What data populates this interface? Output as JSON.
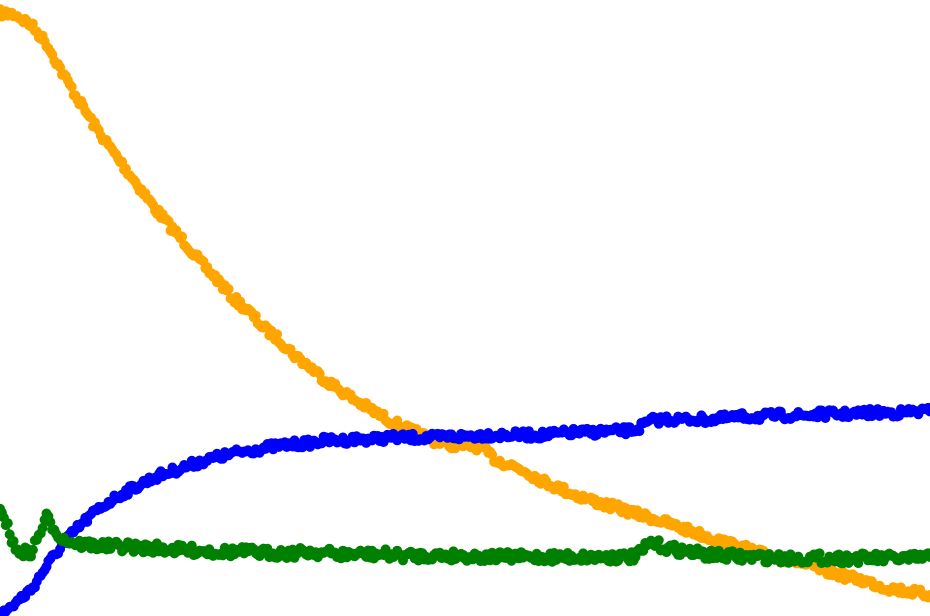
{
  "chart_data": {
    "type": "scatter",
    "axes_visible": false,
    "grid": false,
    "legend": "none",
    "x": [
      0,
      1,
      2,
      3,
      4,
      5,
      6,
      7,
      8,
      9,
      10,
      11,
      12,
      13,
      14,
      15,
      16,
      17,
      18,
      19,
      20,
      21,
      22,
      23,
      24,
      25,
      26,
      27,
      28,
      29,
      30,
      31,
      32,
      33,
      34,
      35,
      36,
      37,
      38,
      39,
      40,
      41,
      42,
      43,
      44,
      45,
      46,
      47,
      48,
      49,
      50,
      51,
      52,
      53,
      54,
      55,
      56,
      57,
      58,
      59,
      60
    ],
    "series": [
      {
        "color": "#ffa500",
        "marker": "dot",
        "values": [
          590.0,
          589.0,
          581.0,
          567.0,
          545.0,
          525.0,
          506.0,
          489.0,
          473.0,
          457.0,
          441.0,
          427.0,
          414.0,
          399.0,
          387.0,
          373.0,
          363.0,
          350.0,
          341.0,
          329.0,
          320.0,
          310.0,
          302.0,
          294.0,
          287.0,
          280.0,
          274.0,
          269.0,
          264.0,
          261.0,
          260.0,
          259.0,
          249.0,
          245.0,
          240.0,
          233.0,
          228.0,
          223.0,
          219.0,
          215.0,
          212.0,
          208.0,
          205.0,
          201.0,
          197.0,
          193.0,
          189.0,
          185.0,
          182.0,
          178.0,
          175.0,
          173.0,
          169.0,
          165.0,
          162.0,
          159.0,
          156.0,
          152.0,
          150.0,
          148.0,
          146.0
        ]
      },
      {
        "color": "#0000ff",
        "marker": "dot",
        "values": [
          130.0,
          140.0,
          150.0,
          168.0,
          184.0,
          197.0,
          208.0,
          217.0,
          224.0,
          230.0,
          236.0,
          240.0,
          244.0,
          248.0,
          251.0,
          254.0,
          256.0,
          258.0,
          260.0,
          261.0,
          262.0,
          264.0,
          264.0,
          265.0,
          265.0,
          266.0,
          266.0,
          266.0,
          266.0,
          267.0,
          267.0,
          268.0,
          268.0,
          268.0,
          268.0,
          268.0,
          269.0,
          270.0,
          270.0,
          271.0,
          271.0,
          272.0,
          279.0,
          280.0,
          280.0,
          280.0,
          280.0,
          281.0,
          282.0,
          282.0,
          283.0,
          283.0,
          283.0,
          284.0,
          284.0,
          284.0,
          285.0,
          285.0,
          285.0,
          286.0,
          286.0
        ]
      },
      {
        "color": "#008000",
        "marker": "dot-line",
        "values": [
          215.0,
          180.0,
          178.0,
          205.0,
          189.0,
          185.0,
          184.0,
          183.0,
          183.0,
          182.0,
          182.0,
          181.0,
          180.0,
          180.0,
          179.0,
          179.0,
          179.0,
          178.0,
          178.0,
          178.0,
          179.0,
          178.0,
          177.0,
          177.0,
          177.0,
          177.0,
          176.0,
          176.0,
          176.0,
          176.0,
          176.0,
          175.0,
          175.0,
          175.0,
          175.0,
          175.0,
          175.0,
          175.0,
          175.0,
          175.0,
          175.0,
          175.0,
          186.0,
          182.0,
          180.0,
          178.0,
          176.0,
          176.0,
          175.0,
          175.0,
          174.0,
          174.0,
          174.0,
          174.0,
          174.0,
          174.0,
          174.0,
          174.0,
          174.0,
          174.0,
          175.0
        ]
      }
    ],
    "xlim": [
      0,
      60
    ],
    "ylim": [
      130,
      600
    ]
  }
}
